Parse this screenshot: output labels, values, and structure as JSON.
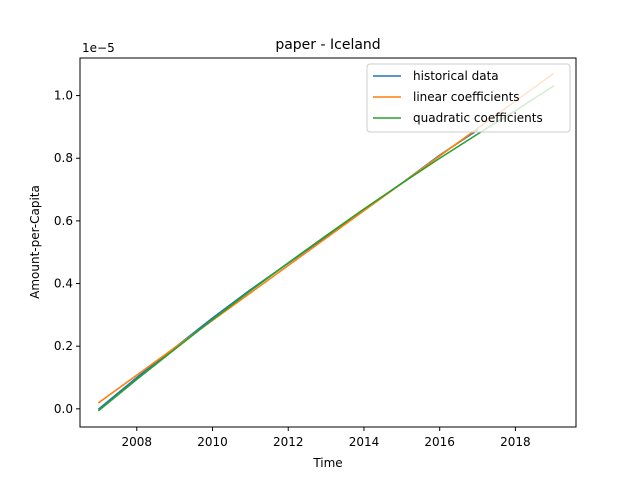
{
  "chart_data": {
    "type": "line",
    "title": "paper - Iceland",
    "xlabel": "Time",
    "ylabel": "Amount-per-Capita",
    "offset_text": "1e−5",
    "xlim": [
      2006.5,
      2019.6
    ],
    "ylim": [
      -0.058,
      1.12
    ],
    "x_ticks": [
      2008,
      2010,
      2012,
      2014,
      2016,
      2018
    ],
    "y_ticks": [
      0.0,
      0.2,
      0.4,
      0.6,
      0.8,
      1.0
    ],
    "y_tick_labels": [
      "0.0",
      "0.2",
      "0.4",
      "0.6",
      "0.8",
      "1.0"
    ],
    "grid": false,
    "legend_position": "top-right",
    "series": [
      {
        "name": "historical data",
        "color": "#1f77b4",
        "x": [
          2007,
          2008,
          2009,
          2010,
          2011,
          2012,
          2013,
          2014,
          2015,
          2016,
          2017
        ],
        "y": [
          0.0,
          0.1,
          0.195,
          0.29,
          0.38,
          0.465,
          0.55,
          0.635,
          0.72,
          0.81,
          0.89
        ]
      },
      {
        "name": "linear coefficients",
        "color": "#ff7f0e",
        "x": [
          2007,
          2019
        ],
        "y": [
          0.02,
          1.07
        ]
      },
      {
        "name": "quadratic coefficients",
        "color": "#2ca02c",
        "x": [
          2007,
          2008,
          2009,
          2010,
          2011,
          2012,
          2013,
          2014,
          2015,
          2016,
          2017,
          2018,
          2019
        ],
        "y": [
          -0.005,
          0.094,
          0.19,
          0.285,
          0.377,
          0.466,
          0.553,
          0.638,
          0.72,
          0.8,
          0.877,
          0.952,
          1.03
        ]
      }
    ]
  }
}
